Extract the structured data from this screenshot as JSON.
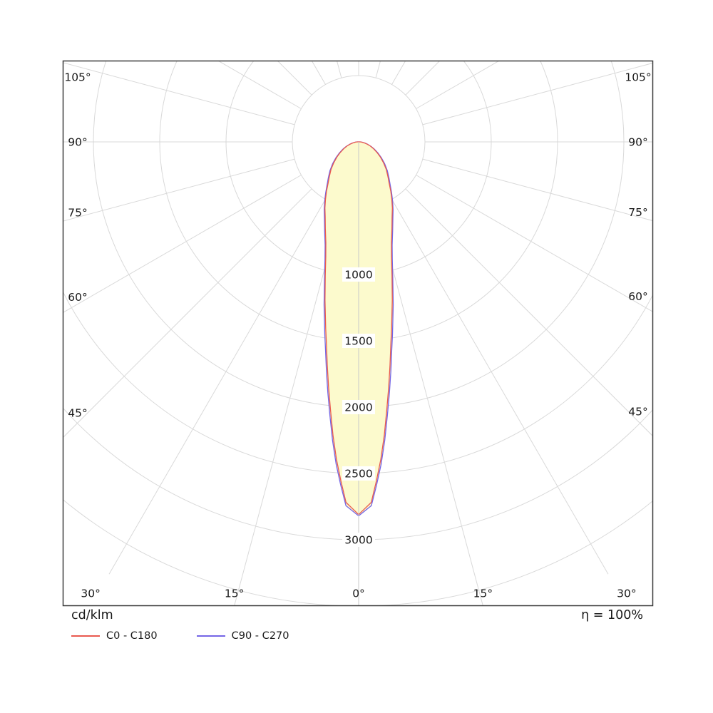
{
  "chart_data": {
    "type": "polar",
    "subtype": "luminous-intensity-distribution",
    "units_label": "cd/klm",
    "efficiency_label": "η = 100%",
    "angle_ticks_deg": [
      0,
      15,
      30,
      45,
      60,
      75,
      90,
      105
    ],
    "grid_angle_step_deg": 15,
    "radial_grid_step": 500,
    "r_max": 3500,
    "radial_tick_labels": [
      1000,
      1500,
      2000,
      2500,
      3000
    ],
    "fill_color": "#fcfacd",
    "grid_color": "#d9d9d9",
    "border_color": "#3a3a3a",
    "axis_line_color": "#c9c9c9",
    "series": [
      {
        "name": "C0 - C180",
        "color": "#e9594f",
        "gamma_deg": [
          0,
          2,
          3,
          4,
          5,
          6,
          7,
          8,
          9,
          10,
          12,
          14,
          16,
          18,
          21,
          24,
          27,
          30,
          33,
          37,
          40,
          45,
          50,
          55,
          60,
          65,
          70,
          75,
          80,
          85,
          90
        ],
        "values_cd_per_klm": [
          2810,
          2720,
          2560,
          2400,
          2220,
          2030,
          1860,
          1700,
          1550,
          1430,
          1220,
          1040,
          900,
          800,
          700,
          620,
          560,
          500,
          445,
          380,
          345,
          295,
          245,
          200,
          160,
          125,
          95,
          68,
          45,
          25,
          12
        ]
      },
      {
        "name": "C90 - C270",
        "color": "#7465e6",
        "gamma_deg": [
          0,
          2,
          3,
          4,
          5,
          6,
          7,
          8,
          9,
          10,
          12,
          14,
          16,
          18,
          21,
          24,
          27,
          30,
          33,
          37,
          40,
          45,
          50,
          55,
          60,
          65,
          70,
          75,
          80,
          85,
          90
        ],
        "values_cd_per_klm": [
          2820,
          2745,
          2590,
          2435,
          2260,
          2075,
          1905,
          1745,
          1595,
          1470,
          1255,
          1065,
          920,
          818,
          715,
          634,
          572,
          512,
          456,
          392,
          356,
          306,
          256,
          210,
          168,
          132,
          100,
          72,
          48,
          26,
          13
        ]
      }
    ]
  },
  "footer": {
    "units_label": "cd/klm",
    "efficiency_label": "η = 100%"
  },
  "legend": {
    "items": [
      {
        "label": "C0 - C180"
      },
      {
        "label": "C90 - C270"
      }
    ]
  }
}
